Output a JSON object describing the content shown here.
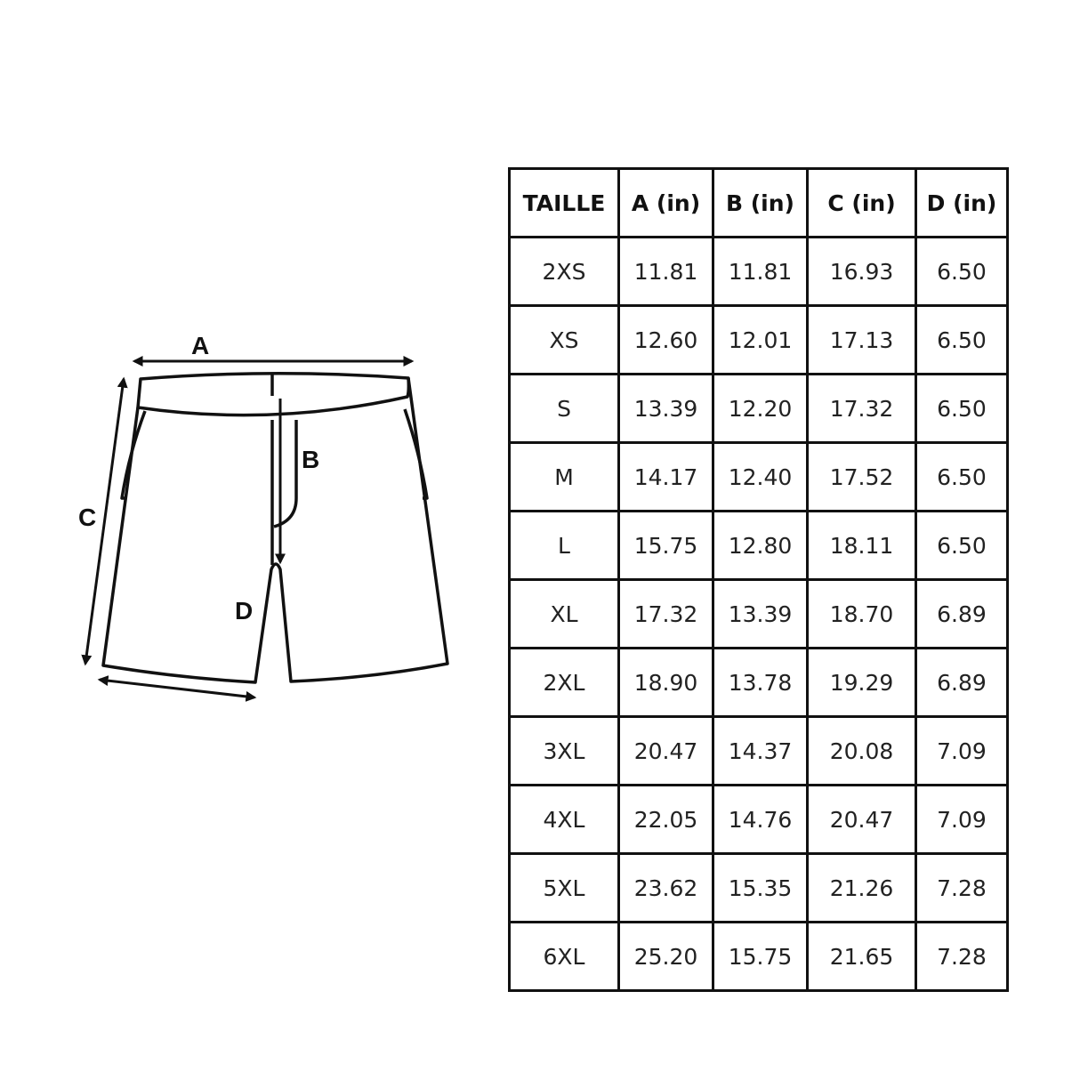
{
  "diagram": {
    "labels": {
      "a": "A",
      "b": "B",
      "c": "C",
      "d": "D"
    }
  },
  "table": {
    "headers": [
      "TAILLE",
      "A (in)",
      "B (in)",
      "C (in)",
      "D (in)"
    ],
    "rows": [
      [
        "2XS",
        "11.81",
        "11.81",
        "16.93",
        "6.50"
      ],
      [
        "XS",
        "12.60",
        "12.01",
        "17.13",
        "6.50"
      ],
      [
        "S",
        "13.39",
        "12.20",
        "17.32",
        "6.50"
      ],
      [
        "M",
        "14.17",
        "12.40",
        "17.52",
        "6.50"
      ],
      [
        "L",
        "15.75",
        "12.80",
        "18.11",
        "6.50"
      ],
      [
        "XL",
        "17.32",
        "13.39",
        "18.70",
        "6.89"
      ],
      [
        "2XL",
        "18.90",
        "13.78",
        "19.29",
        "6.89"
      ],
      [
        "3XL",
        "20.47",
        "14.37",
        "20.08",
        "7.09"
      ],
      [
        "4XL",
        "22.05",
        "14.76",
        "20.47",
        "7.09"
      ],
      [
        "5XL",
        "23.62",
        "15.35",
        "21.26",
        "7.28"
      ],
      [
        "6XL",
        "25.20",
        "15.75",
        "21.65",
        "7.28"
      ]
    ]
  }
}
